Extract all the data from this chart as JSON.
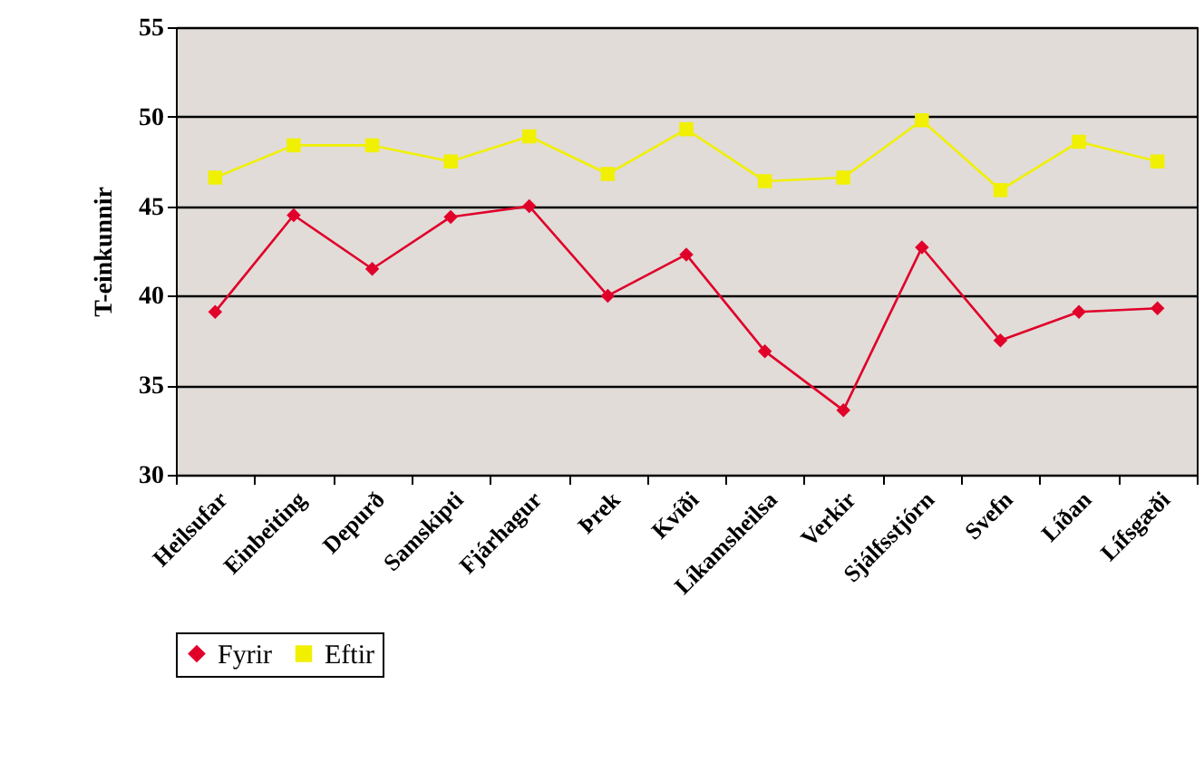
{
  "chart_data": {
    "type": "line",
    "ylabel": "T-einkunnir",
    "categories": [
      "Heilsufar",
      "Einbeiting",
      "Depurð",
      "Samskipti",
      "Fjárhagur",
      "Þrek",
      "Kvíði",
      "Líkamsheilsa",
      "Verkir",
      "Sjálfsstjórn",
      "Svefn",
      "Líðan",
      "Lífsgæði"
    ],
    "series": [
      {
        "name": "Fyrir",
        "color": "#e0002a",
        "marker": "diamond",
        "values": [
          39.1,
          44.5,
          41.5,
          44.4,
          45.0,
          40.0,
          42.3,
          36.9,
          33.6,
          42.7,
          37.5,
          39.1,
          39.3
        ]
      },
      {
        "name": "Eftir",
        "color": "#f0f000",
        "marker": "square",
        "values": [
          46.6,
          48.4,
          48.4,
          47.5,
          48.9,
          46.8,
          49.3,
          46.4,
          46.6,
          49.8,
          45.9,
          48.6,
          47.5
        ]
      }
    ],
    "ylim": [
      30,
      55
    ],
    "yticks": [
      30,
      35,
      40,
      45,
      50,
      55
    ],
    "grid": "y",
    "legend": "bottom"
  }
}
